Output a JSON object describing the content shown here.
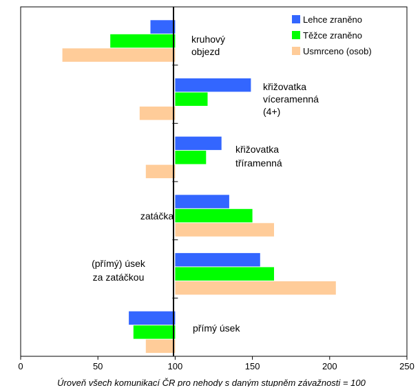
{
  "chart_data": {
    "type": "bar",
    "orientation": "horizontal",
    "baseline": 100,
    "xlim": [
      0,
      250
    ],
    "x_ticks": [
      "0",
      "50",
      "100",
      "150",
      "200",
      "250"
    ],
    "xlabel": "Úroveň všech komunikací ČR pro nehody  s daným stupněm  závažnosti  = 100",
    "grid": false,
    "legend_position": "top-right",
    "categories": [
      "kruhový objezd",
      "křižovatka víceramenná (4+)",
      "křižovatka tříramenná",
      "zatáčka",
      "(přímý) úsek za zatáčkou",
      "přímý úsek"
    ],
    "category_label_lines": [
      [
        "kruhový",
        "objezd"
      ],
      [
        "křižovatka",
        "víceramenná",
        "(4+)"
      ],
      [
        "křižovatka",
        "tříramenná"
      ],
      [
        "zatáčka"
      ],
      [
        "(přímý) úsek",
        "za zatáčkou"
      ],
      [
        "přímý úsek"
      ]
    ],
    "series": [
      {
        "name": "Lehce zraněno",
        "color": "#3366ff",
        "values": [
          84,
          149,
          130,
          135,
          155,
          70
        ]
      },
      {
        "name": "Těžce zraněno",
        "color": "#00ff00",
        "values": [
          58,
          121,
          120,
          150,
          164,
          73
        ]
      },
      {
        "name": "Usmrceno (osob)",
        "color": "#ffcc99",
        "values": [
          27,
          77,
          81,
          164,
          204,
          81
        ]
      }
    ]
  }
}
